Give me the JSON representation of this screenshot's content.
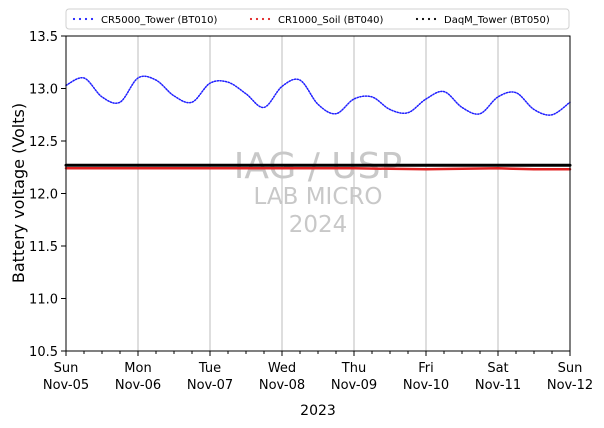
{
  "chart_data": {
    "type": "line",
    "title": "",
    "xlabel": "2023",
    "ylabel": "Battery voltage (Volts)",
    "ylim": [
      10.5,
      13.5
    ],
    "xlim": [
      "2023-11-05",
      "2023-11-12"
    ],
    "yticks": [
      "10.5",
      "11.0",
      "11.5",
      "12.0",
      "12.5",
      "13.0",
      "13.5"
    ],
    "xticks": [
      {
        "day": "Sun",
        "date": "Nov-05"
      },
      {
        "day": "Mon",
        "date": "Nov-06"
      },
      {
        "day": "Tue",
        "date": "Nov-07"
      },
      {
        "day": "Wed",
        "date": "Nov-08"
      },
      {
        "day": "Thu",
        "date": "Nov-09"
      },
      {
        "day": "Fri",
        "date": "Nov-10"
      },
      {
        "day": "Sat",
        "date": "Nov-11"
      },
      {
        "day": "Sun",
        "date": "Nov-12"
      }
    ],
    "grid": "vertical lines at each day",
    "legend_position": "top",
    "watermark": [
      "IAG / USP",
      "LAB MICRO",
      "2024"
    ],
    "series": [
      {
        "name": "CR5000_Tower (BT010)",
        "color": "#1f1fff",
        "style": "dotted",
        "x": [
          "2023-11-05 00:00",
          "2023-11-05 06:00",
          "2023-11-05 12:00",
          "2023-11-05 18:00",
          "2023-11-06 00:00",
          "2023-11-06 06:00",
          "2023-11-06 12:00",
          "2023-11-06 18:00",
          "2023-11-07 00:00",
          "2023-11-07 06:00",
          "2023-11-07 12:00",
          "2023-11-07 18:00",
          "2023-11-08 00:00",
          "2023-11-08 06:00",
          "2023-11-08 12:00",
          "2023-11-08 18:00",
          "2023-11-09 00:00",
          "2023-11-09 06:00",
          "2023-11-09 12:00",
          "2023-11-09 18:00",
          "2023-11-10 00:00",
          "2023-11-10 06:00",
          "2023-11-10 12:00",
          "2023-11-10 18:00",
          "2023-11-11 00:00",
          "2023-11-11 06:00",
          "2023-11-11 12:00",
          "2023-11-11 18:00",
          "2023-11-12 00:00"
        ],
        "values": [
          13.03,
          13.1,
          12.92,
          12.87,
          13.1,
          13.08,
          12.93,
          12.87,
          13.05,
          13.06,
          12.95,
          12.82,
          13.02,
          13.08,
          12.85,
          12.76,
          12.9,
          12.92,
          12.8,
          12.77,
          12.9,
          12.97,
          12.82,
          12.76,
          12.92,
          12.96,
          12.8,
          12.75,
          12.87
        ]
      },
      {
        "name": "CR1000_Soil (BT040)",
        "color": "#e02020",
        "style": "dotted",
        "x": [
          "2023-11-05 00:00",
          "2023-11-06 00:00",
          "2023-11-07 00:00",
          "2023-11-08 00:00",
          "2023-11-09 00:00",
          "2023-11-10 00:00",
          "2023-11-11 00:00",
          "2023-11-11 12:00",
          "2023-11-12 00:00"
        ],
        "values": [
          12.24,
          12.24,
          12.24,
          12.24,
          12.24,
          12.23,
          12.24,
          12.23,
          12.23
        ]
      },
      {
        "name": "DaqM_Tower (BT050)",
        "color": "#000000",
        "style": "dotted",
        "x": [
          "2023-11-05 00:00",
          "2023-11-12 00:00"
        ],
        "values": [
          12.27,
          12.27
        ]
      }
    ]
  }
}
